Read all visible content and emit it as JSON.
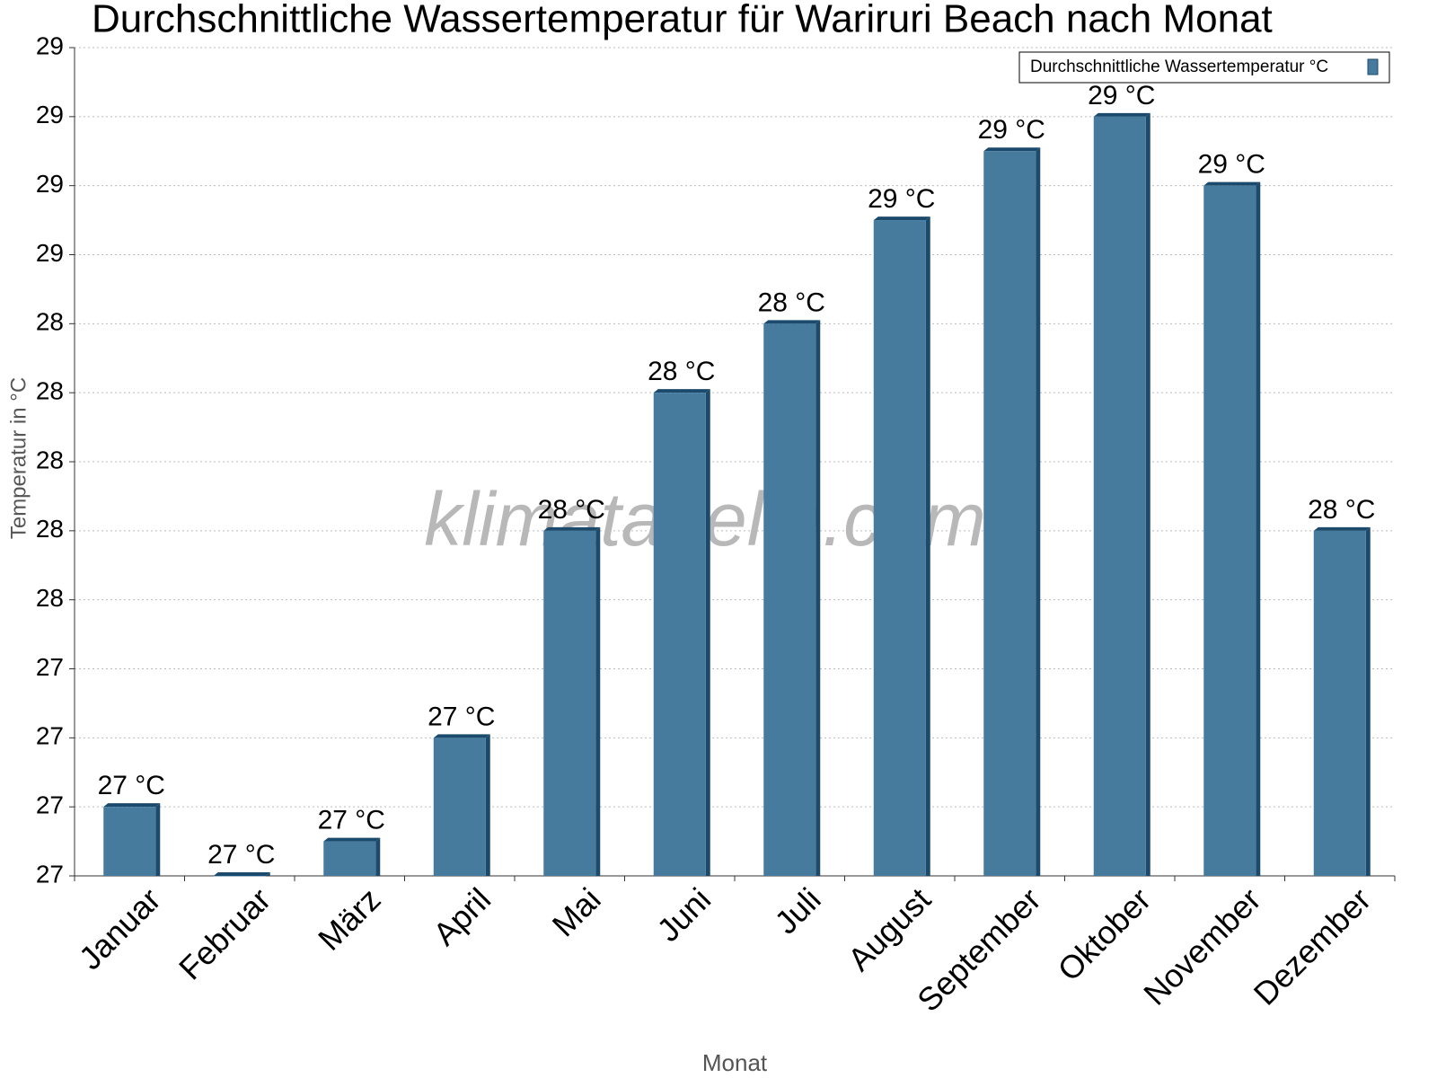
{
  "chart_data": {
    "type": "bar",
    "title": "Durchschnittliche Wassertemperatur für Wariruri Beach nach Monat",
    "x_label": "Monat",
    "y_label": "Temperatur in °C",
    "watermark": "klimatabelle.com",
    "categories": [
      "Januar",
      "Februar",
      "März",
      "April",
      "Mai",
      "Juni",
      "Juli",
      "August",
      "September",
      "Oktober",
      "November",
      "Dezember"
    ],
    "series": [
      {
        "name": "Durchschnittliche Wassertemperatur °C",
        "color": "#467b9e",
        "values": [
          26.9,
          26.7,
          26.8,
          27.1,
          27.7,
          28.1,
          28.3,
          28.6,
          28.8,
          28.9,
          28.7,
          27.7
        ],
        "value_labels": [
          "27 °C",
          "27 °C",
          "27 °C",
          "27 °C",
          "28 °C",
          "28 °C",
          "28 °C",
          "29 °C",
          "29 °C",
          "29 °C",
          "29 °C",
          "28 °C"
        ]
      }
    ],
    "ylim": [
      26.7,
      29.1
    ],
    "yticks": [
      {
        "value": 26.7,
        "label": "27"
      },
      {
        "value": 26.9,
        "label": "27"
      },
      {
        "value": 27.1,
        "label": "27"
      },
      {
        "value": 27.3,
        "label": "27"
      },
      {
        "value": 27.5,
        "label": "28"
      },
      {
        "value": 27.7,
        "label": "28"
      },
      {
        "value": 27.9,
        "label": "28"
      },
      {
        "value": 28.1,
        "label": "28"
      },
      {
        "value": 28.3,
        "label": "28"
      },
      {
        "value": 28.5,
        "label": "29"
      },
      {
        "value": 28.7,
        "label": "29"
      },
      {
        "value": 28.9,
        "label": "29"
      },
      {
        "value": 29.1,
        "label": "29"
      }
    ],
    "grid": true,
    "legend": "top-right"
  }
}
